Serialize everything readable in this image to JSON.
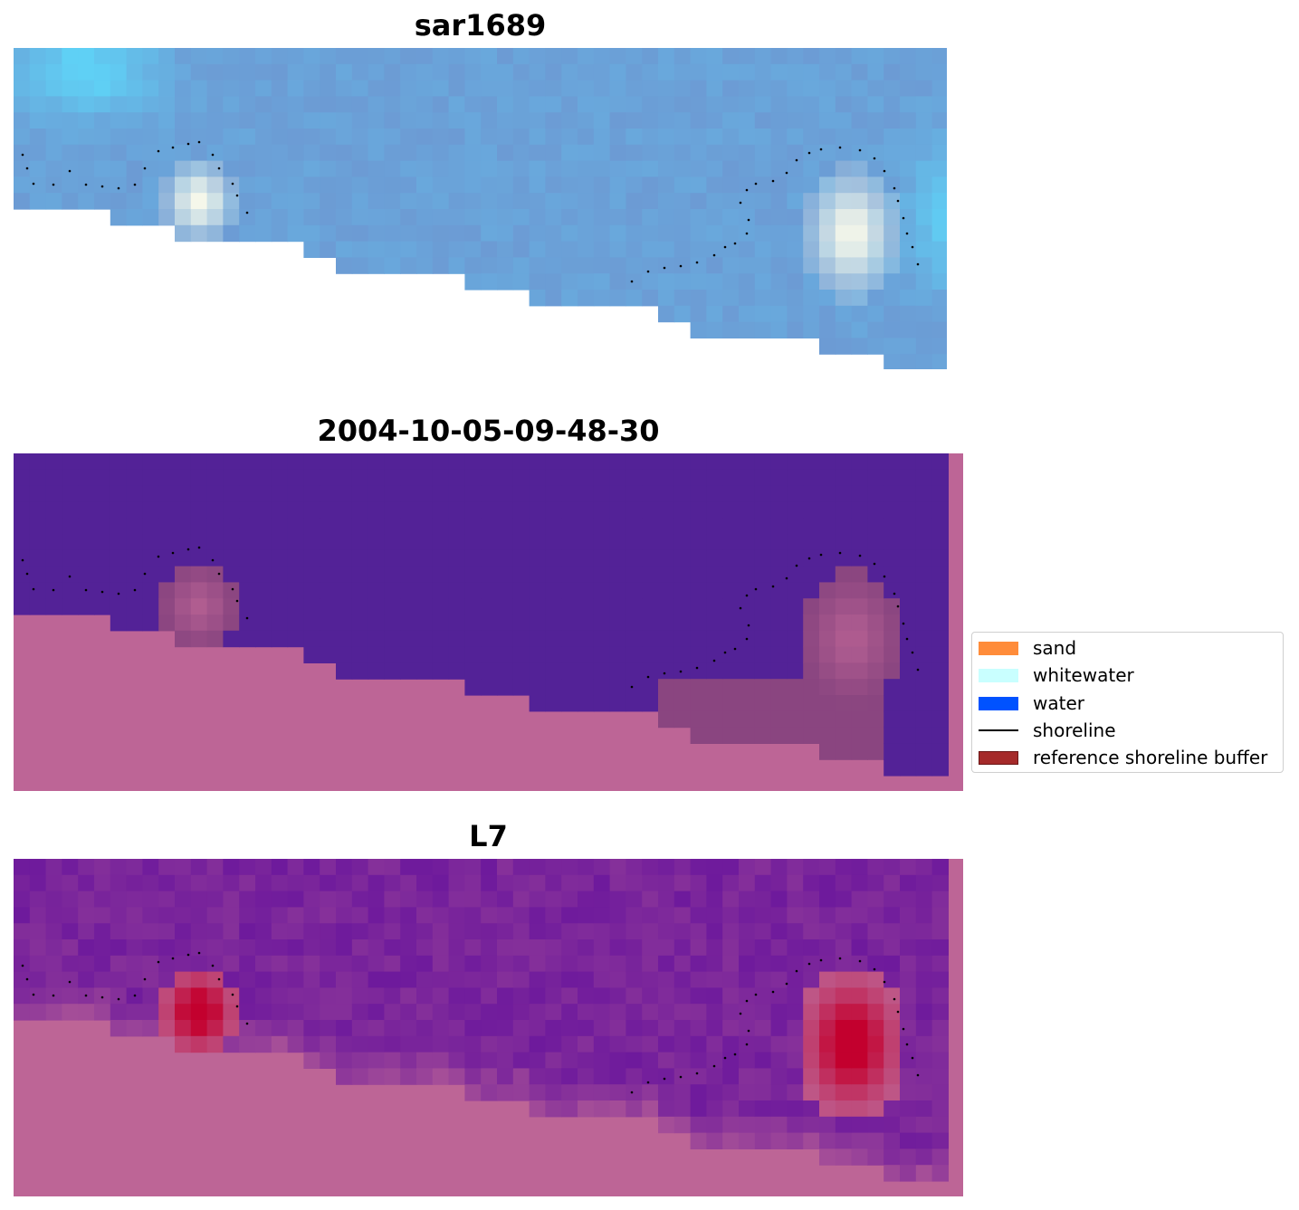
{
  "panels": [
    {
      "title": "sar1689",
      "kind": "rgb"
    },
    {
      "title": "2004-10-05-09-48-30",
      "kind": "classified"
    },
    {
      "title": "L7",
      "kind": "index"
    }
  ],
  "legend": {
    "items": [
      {
        "label": "sand",
        "color": "#ff8c3a",
        "type": "patch"
      },
      {
        "label": "whitewater",
        "color": "#c9ffff",
        "type": "patch"
      },
      {
        "label": "water",
        "color": "#0052ff",
        "type": "patch"
      },
      {
        "label": "shoreline",
        "color": "#000000",
        "type": "line"
      },
      {
        "label": "reference shoreline buffer",
        "color": "#a52a2a",
        "type": "patch"
      }
    ]
  },
  "colors": {
    "no_data": "#bd6596",
    "water_purple": "#532297",
    "buffer_mauve": "#8a4580",
    "rgb_blue": "#6c9bd4",
    "rgb_light": "#5fd0f5",
    "rgb_white": "#f5f7ea",
    "index_purple": "#6e1a9c",
    "index_red": "#c3002e"
  }
}
